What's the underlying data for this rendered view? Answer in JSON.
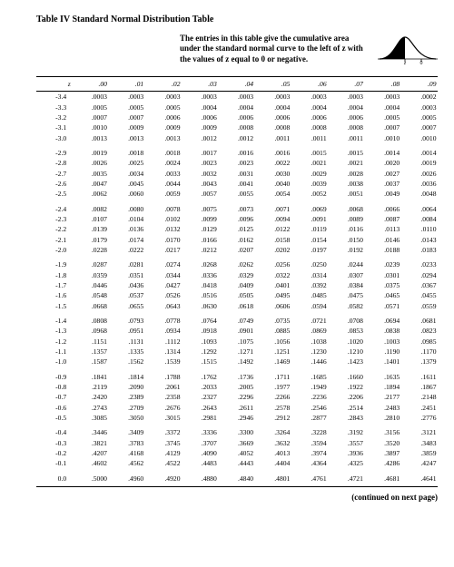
{
  "title": "Table IV   Standard Normal Distribution Table",
  "intro": "The entries in this table give the cumulative area under the standard normal curve to the left of z with the values of z equal to 0 or negative.",
  "continued": "(continued on next page)",
  "curve": {
    "stroke": "#000",
    "fill": "#000",
    "label": "z"
  },
  "headers": [
    "z",
    ".00",
    ".01",
    ".02",
    ".03",
    ".04",
    ".05",
    ".06",
    ".07",
    ".08",
    ".09"
  ],
  "groups": [
    [
      [
        "-3.4",
        ".0003",
        ".0003",
        ".0003",
        ".0003",
        ".0003",
        ".0003",
        ".0003",
        ".0003",
        ".0003",
        ".0002"
      ],
      [
        "-3.3",
        ".0005",
        ".0005",
        ".0005",
        ".0004",
        ".0004",
        ".0004",
        ".0004",
        ".0004",
        ".0004",
        ".0003"
      ],
      [
        "-3.2",
        ".0007",
        ".0007",
        ".0006",
        ".0006",
        ".0006",
        ".0006",
        ".0006",
        ".0006",
        ".0005",
        ".0005"
      ],
      [
        "-3.1",
        ".0010",
        ".0009",
        ".0009",
        ".0009",
        ".0008",
        ".0008",
        ".0008",
        ".0008",
        ".0007",
        ".0007"
      ],
      [
        "-3.0",
        ".0013",
        ".0013",
        ".0013",
        ".0012",
        ".0012",
        ".0011",
        ".0011",
        ".0011",
        ".0010",
        ".0010"
      ]
    ],
    [
      [
        "-2.9",
        ".0019",
        ".0018",
        ".0018",
        ".0017",
        ".0016",
        ".0016",
        ".0015",
        ".0015",
        ".0014",
        ".0014"
      ],
      [
        "-2.8",
        ".0026",
        ".0025",
        ".0024",
        ".0023",
        ".0023",
        ".0022",
        ".0021",
        ".0021",
        ".0020",
        ".0019"
      ],
      [
        "-2.7",
        ".0035",
        ".0034",
        ".0033",
        ".0032",
        ".0031",
        ".0030",
        ".0029",
        ".0028",
        ".0027",
        ".0026"
      ],
      [
        "-2.6",
        ".0047",
        ".0045",
        ".0044",
        ".0043",
        ".0041",
        ".0040",
        ".0039",
        ".0038",
        ".0037",
        ".0036"
      ],
      [
        "-2.5",
        ".0062",
        ".0060",
        ".0059",
        ".0057",
        ".0055",
        ".0054",
        ".0052",
        ".0051",
        ".0049",
        ".0048"
      ]
    ],
    [
      [
        "-2.4",
        ".0082",
        ".0080",
        ".0078",
        ".0075",
        ".0073",
        ".0071",
        ".0069",
        ".0068",
        ".0066",
        ".0064"
      ],
      [
        "-2.3",
        ".0107",
        ".0104",
        ".0102",
        ".0099",
        ".0096",
        ".0094",
        ".0091",
        ".0089",
        ".0087",
        ".0084"
      ],
      [
        "-2.2",
        ".0139",
        ".0136",
        ".0132",
        ".0129",
        ".0125",
        ".0122",
        ".0119",
        ".0116",
        ".0113",
        ".0110"
      ],
      [
        "-2.1",
        ".0179",
        ".0174",
        ".0170",
        ".0166",
        ".0162",
        ".0158",
        ".0154",
        ".0150",
        ".0146",
        ".0143"
      ],
      [
        "-2.0",
        ".0228",
        ".0222",
        ".0217",
        ".0212",
        ".0207",
        ".0202",
        ".0197",
        ".0192",
        ".0188",
        ".0183"
      ]
    ],
    [
      [
        "-1.9",
        ".0287",
        ".0281",
        ".0274",
        ".0268",
        ".0262",
        ".0256",
        ".0250",
        ".0244",
        ".0239",
        ".0233"
      ],
      [
        "-1.8",
        ".0359",
        ".0351",
        ".0344",
        ".0336",
        ".0329",
        ".0322",
        ".0314",
        ".0307",
        ".0301",
        ".0294"
      ],
      [
        "-1.7",
        ".0446",
        ".0436",
        ".0427",
        ".0418",
        ".0409",
        ".0401",
        ".0392",
        ".0384",
        ".0375",
        ".0367"
      ],
      [
        "-1.6",
        ".0548",
        ".0537",
        ".0526",
        ".0516",
        ".0505",
        ".0495",
        ".0485",
        ".0475",
        ".0465",
        ".0455"
      ],
      [
        "-1.5",
        ".0668",
        ".0655",
        ".0643",
        ".0630",
        ".0618",
        ".0606",
        ".0594",
        ".0582",
        ".0571",
        ".0559"
      ]
    ],
    [
      [
        "-1.4",
        ".0808",
        ".0793",
        ".0778",
        ".0764",
        ".0749",
        ".0735",
        ".0721",
        ".0708",
        ".0694",
        ".0681"
      ],
      [
        "-1.3",
        ".0968",
        ".0951",
        ".0934",
        ".0918",
        ".0901",
        ".0885",
        ".0869",
        ".0853",
        ".0838",
        ".0823"
      ],
      [
        "-1.2",
        ".1151",
        ".1131",
        ".1112",
        ".1093",
        ".1075",
        ".1056",
        ".1038",
        ".1020",
        ".1003",
        ".0985"
      ],
      [
        "-1.1",
        ".1357",
        ".1335",
        ".1314",
        ".1292",
        ".1271",
        ".1251",
        ".1230",
        ".1210",
        ".1190",
        ".1170"
      ],
      [
        "-1.0",
        ".1587",
        ".1562",
        ".1539",
        ".1515",
        ".1492",
        ".1469",
        ".1446",
        ".1423",
        ".1401",
        ".1379"
      ]
    ],
    [
      [
        "-0.9",
        ".1841",
        ".1814",
        ".1788",
        ".1762",
        ".1736",
        ".1711",
        ".1685",
        ".1660",
        ".1635",
        ".1611"
      ],
      [
        "-0.8",
        ".2119",
        ".2090",
        ".2061",
        ".2033",
        ".2005",
        ".1977",
        ".1949",
        ".1922",
        ".1894",
        ".1867"
      ],
      [
        "-0.7",
        ".2420",
        ".2389",
        ".2358",
        ".2327",
        ".2296",
        ".2266",
        ".2236",
        ".2206",
        ".2177",
        ".2148"
      ],
      [
        "-0.6",
        ".2743",
        ".2709",
        ".2676",
        ".2643",
        ".2611",
        ".2578",
        ".2546",
        ".2514",
        ".2483",
        ".2451"
      ],
      [
        "-0.5",
        ".3085",
        ".3050",
        ".3015",
        ".2981",
        ".2946",
        ".2912",
        ".2877",
        ".2843",
        ".2810",
        ".2776"
      ]
    ],
    [
      [
        "-0.4",
        ".3446",
        ".3409",
        ".3372",
        ".3336",
        ".3300",
        ".3264",
        ".3228",
        ".3192",
        ".3156",
        ".3121"
      ],
      [
        "-0.3",
        ".3821",
        ".3783",
        ".3745",
        ".3707",
        ".3669",
        ".3632",
        ".3594",
        ".3557",
        ".3520",
        ".3483"
      ],
      [
        "-0.2",
        ".4207",
        ".4168",
        ".4129",
        ".4090",
        ".4052",
        ".4013",
        ".3974",
        ".3936",
        ".3897",
        ".3859"
      ],
      [
        "-0.1",
        ".4602",
        ".4562",
        ".4522",
        ".4483",
        ".4443",
        ".4404",
        ".4364",
        ".4325",
        ".4286",
        ".4247"
      ]
    ],
    [
      [
        "0.0",
        ".5000",
        ".4960",
        ".4920",
        ".4880",
        ".4840",
        ".4801",
        ".4761",
        ".4721",
        ".4681",
        ".4641"
      ]
    ]
  ]
}
